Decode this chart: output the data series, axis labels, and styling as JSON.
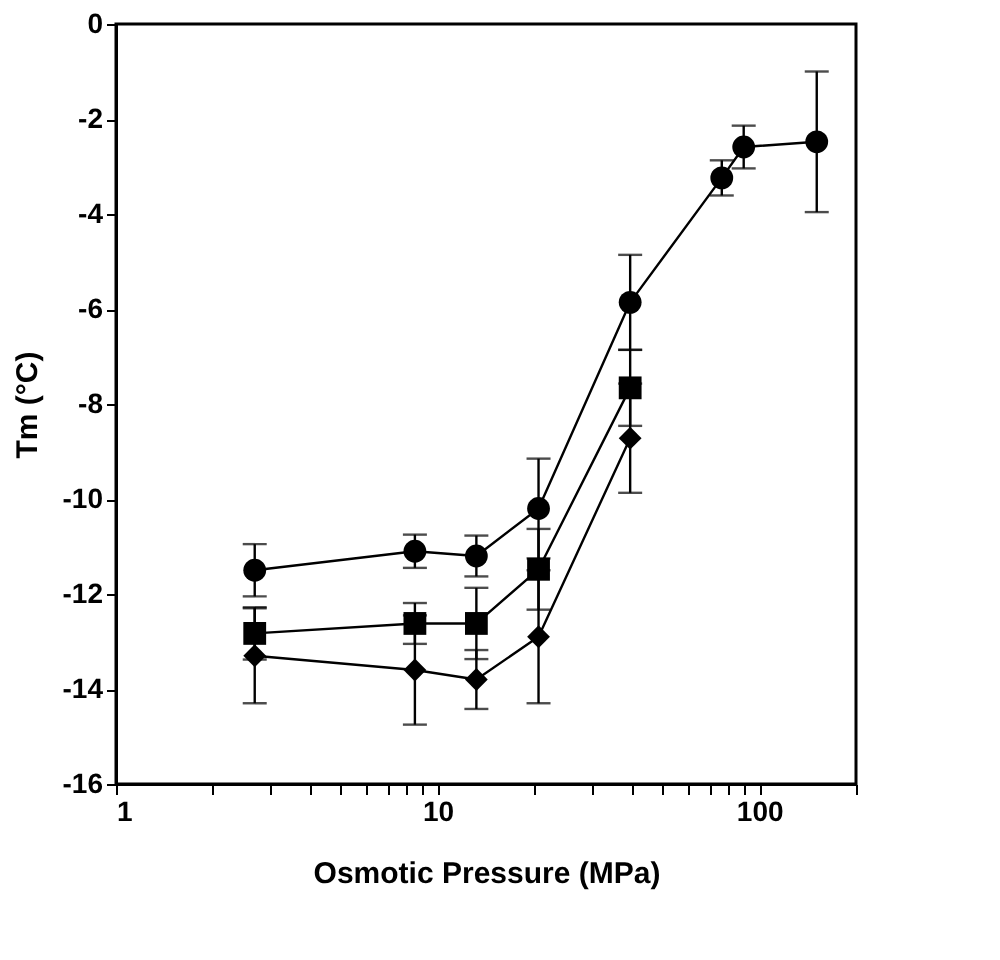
{
  "chart_data": {
    "type": "line",
    "xlabel": "Osmotic Pressure (MPa)",
    "ylabel": "Tm (°C)",
    "log": "x",
    "xlim": [
      1,
      200
    ],
    "xticks": [
      1,
      {
        "value": 2,
        "label": null
      },
      {
        "value": 3,
        "label": null
      },
      {
        "value": 4,
        "label": null
      },
      {
        "value": 5,
        "label": null
      },
      {
        "value": 6,
        "label": null
      },
      {
        "value": 7,
        "label": null
      },
      {
        "value": 8,
        "label": null
      },
      {
        "value": 9,
        "label": null
      },
      10,
      {
        "value": 20,
        "label": null
      },
      {
        "value": 30,
        "label": null
      },
      {
        "value": 40,
        "label": null
      },
      {
        "value": 50,
        "label": null
      },
      {
        "value": 60,
        "label": null
      },
      {
        "value": 70,
        "label": null
      },
      {
        "value": 80,
        "label": null
      },
      {
        "value": 90,
        "label": null
      },
      100,
      {
        "value": 200,
        "label": null
      }
    ],
    "ylim": [
      -16,
      0
    ],
    "yticks": [
      -16,
      -14,
      -12,
      -10,
      -8,
      -6,
      -4,
      -2,
      0
    ],
    "grid": false,
    "line_style": "solid",
    "series": [
      {
        "color": "#000000",
        "marker": "circle",
        "x": [
          2.7,
          8.5,
          13.2,
          20.6,
          39.7,
          76.5,
          89.5,
          151
        ],
        "values": [
          -11.5,
          -11.1,
          -11.2,
          -10.2,
          -5.86,
          -3.24,
          -2.59,
          -2.48
        ],
        "errors": [
          0.55,
          0.35,
          0.43,
          1.05,
          1.0,
          0.37,
          0.45,
          1.48
        ]
      },
      {
        "color": "#000000",
        "marker": "square",
        "x": [
          2.7,
          8.5,
          13.2,
          20.6,
          39.7
        ],
        "values": [
          -12.83,
          -12.62,
          -12.62,
          -11.48,
          -7.66
        ],
        "errors": [
          0.55,
          0.43,
          0.75,
          0.85,
          0.8
        ]
      },
      {
        "color": "#000000",
        "marker": "diamond",
        "x": [
          2.7,
          8.5,
          13.2,
          20.6,
          39.7
        ],
        "values": [
          -13.3,
          -13.6,
          -13.8,
          -12.9,
          -8.72
        ],
        "errors": [
          1.0,
          1.15,
          0.62,
          1.4,
          1.15
        ]
      }
    ]
  }
}
